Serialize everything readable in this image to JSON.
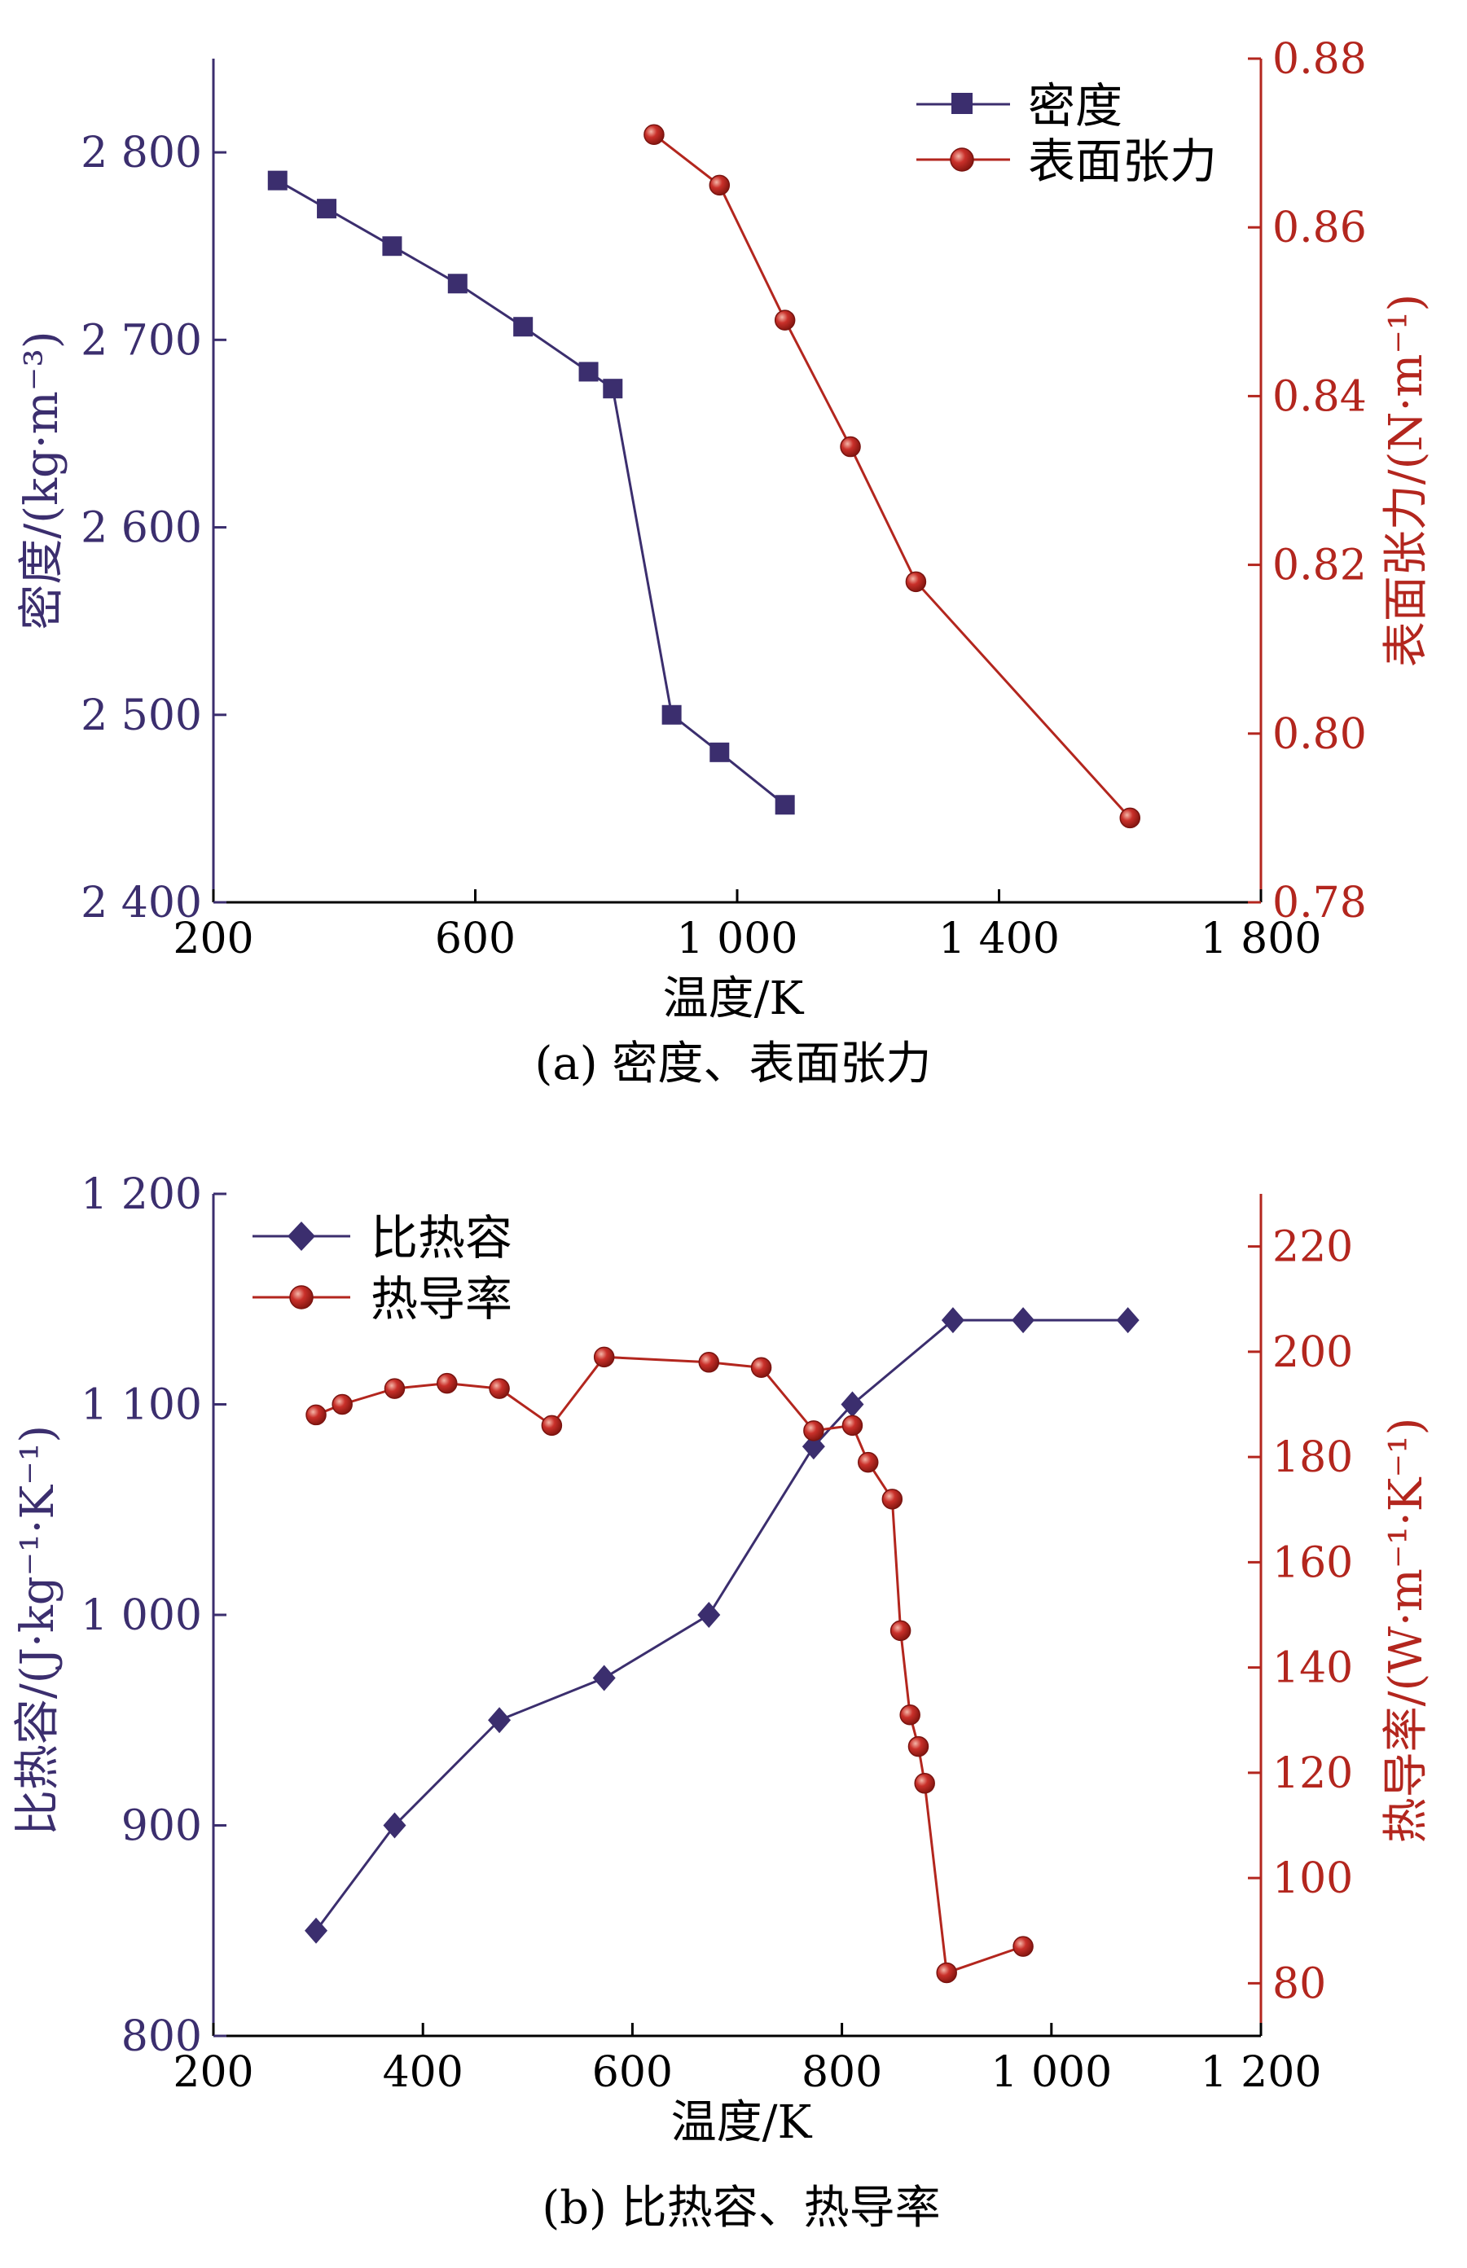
{
  "chart_data": [
    {
      "type": "line",
      "caption": "(a) 密度、表面张力",
      "xlabel": "温度/K",
      "xlim": [
        200,
        1800
      ],
      "xticks": [
        "200",
        "600",
        "1 000",
        "1 400",
        "1 800"
      ],
      "xtick_values": [
        200,
        600,
        1000,
        1400,
        1800
      ],
      "ylabel_left": "密度/(kg·m⁻³)",
      "ylim_left": [
        2400,
        2850
      ],
      "yticks_left": [
        "2 400",
        "2 500",
        "2 600",
        "2 700",
        "2 800"
      ],
      "ytick_values_left": [
        2400,
        2500,
        2600,
        2700,
        2800
      ],
      "ylabel_right": "表面张力/(N·m⁻¹)",
      "ylim_right": [
        0.78,
        0.88
      ],
      "yticks_right": [
        "0.78",
        "0.80",
        "0.82",
        "0.84",
        "0.86",
        "0.88"
      ],
      "ytick_values_right": [
        0.78,
        0.8,
        0.82,
        0.84,
        0.86,
        0.88
      ],
      "legend_position": "top-right",
      "series": [
        {
          "name": "密度",
          "axis": "left",
          "marker": "square",
          "color": "#3b2e6e",
          "x": [
            298,
            373,
            473,
            573,
            673,
            773,
            810,
            900,
            973,
            1073
          ],
          "y": [
            2785,
            2770,
            2750,
            2730,
            2707,
            2683,
            2674,
            2500,
            2480,
            2452
          ]
        },
        {
          "name": "表面张力",
          "axis": "right",
          "marker": "circle",
          "color": "#b3261e",
          "x": [
            873,
            973,
            1073,
            1173,
            1273,
            1600
          ],
          "y": [
            0.871,
            0.865,
            0.849,
            0.834,
            0.818,
            0.79
          ]
        }
      ]
    },
    {
      "type": "line",
      "caption": "(b) 比热容、热导率",
      "xlabel": "温度/K",
      "xlim": [
        200,
        1200
      ],
      "xticks": [
        "200",
        "400",
        "600",
        "800",
        "1 000",
        "1 200"
      ],
      "xtick_values": [
        200,
        400,
        600,
        800,
        1000,
        1200
      ],
      "ylabel_left": "比热容/(J·kg⁻¹·K⁻¹)",
      "ylim_left": [
        800,
        1200
      ],
      "yticks_left": [
        "800",
        "900",
        "1 000",
        "1 100",
        "1 200"
      ],
      "ytick_values_left": [
        800,
        900,
        1000,
        1100,
        1200
      ],
      "ylabel_right": "热导率/(W·m⁻¹·K⁻¹)",
      "ylim_right": [
        70,
        230
      ],
      "yticks_right": [
        "80",
        "100",
        "120",
        "140",
        "160",
        "180",
        "200",
        "220"
      ],
      "ytick_values_right": [
        80,
        100,
        120,
        140,
        160,
        180,
        200,
        220
      ],
      "legend_position": "top-left",
      "series": [
        {
          "name": "比热容",
          "axis": "left",
          "marker": "diamond",
          "color": "#3b2e6e",
          "x": [
            298,
            373,
            473,
            573,
            673,
            773,
            810,
            906,
            973,
            1073
          ],
          "y": [
            850,
            900,
            950,
            970,
            1000,
            1080,
            1100,
            1140,
            1140,
            1140
          ]
        },
        {
          "name": "热导率",
          "axis": "right",
          "marker": "circle",
          "color": "#b3261e",
          "x": [
            298,
            323,
            373,
            423,
            473,
            523,
            573,
            673,
            723,
            773,
            810,
            825,
            848,
            856,
            865,
            873,
            879,
            900,
            973
          ],
          "y": [
            188,
            190,
            193,
            194,
            193,
            186,
            199,
            198,
            197,
            185,
            186,
            179,
            172,
            147,
            131,
            125,
            118,
            82,
            87
          ]
        }
      ]
    }
  ]
}
